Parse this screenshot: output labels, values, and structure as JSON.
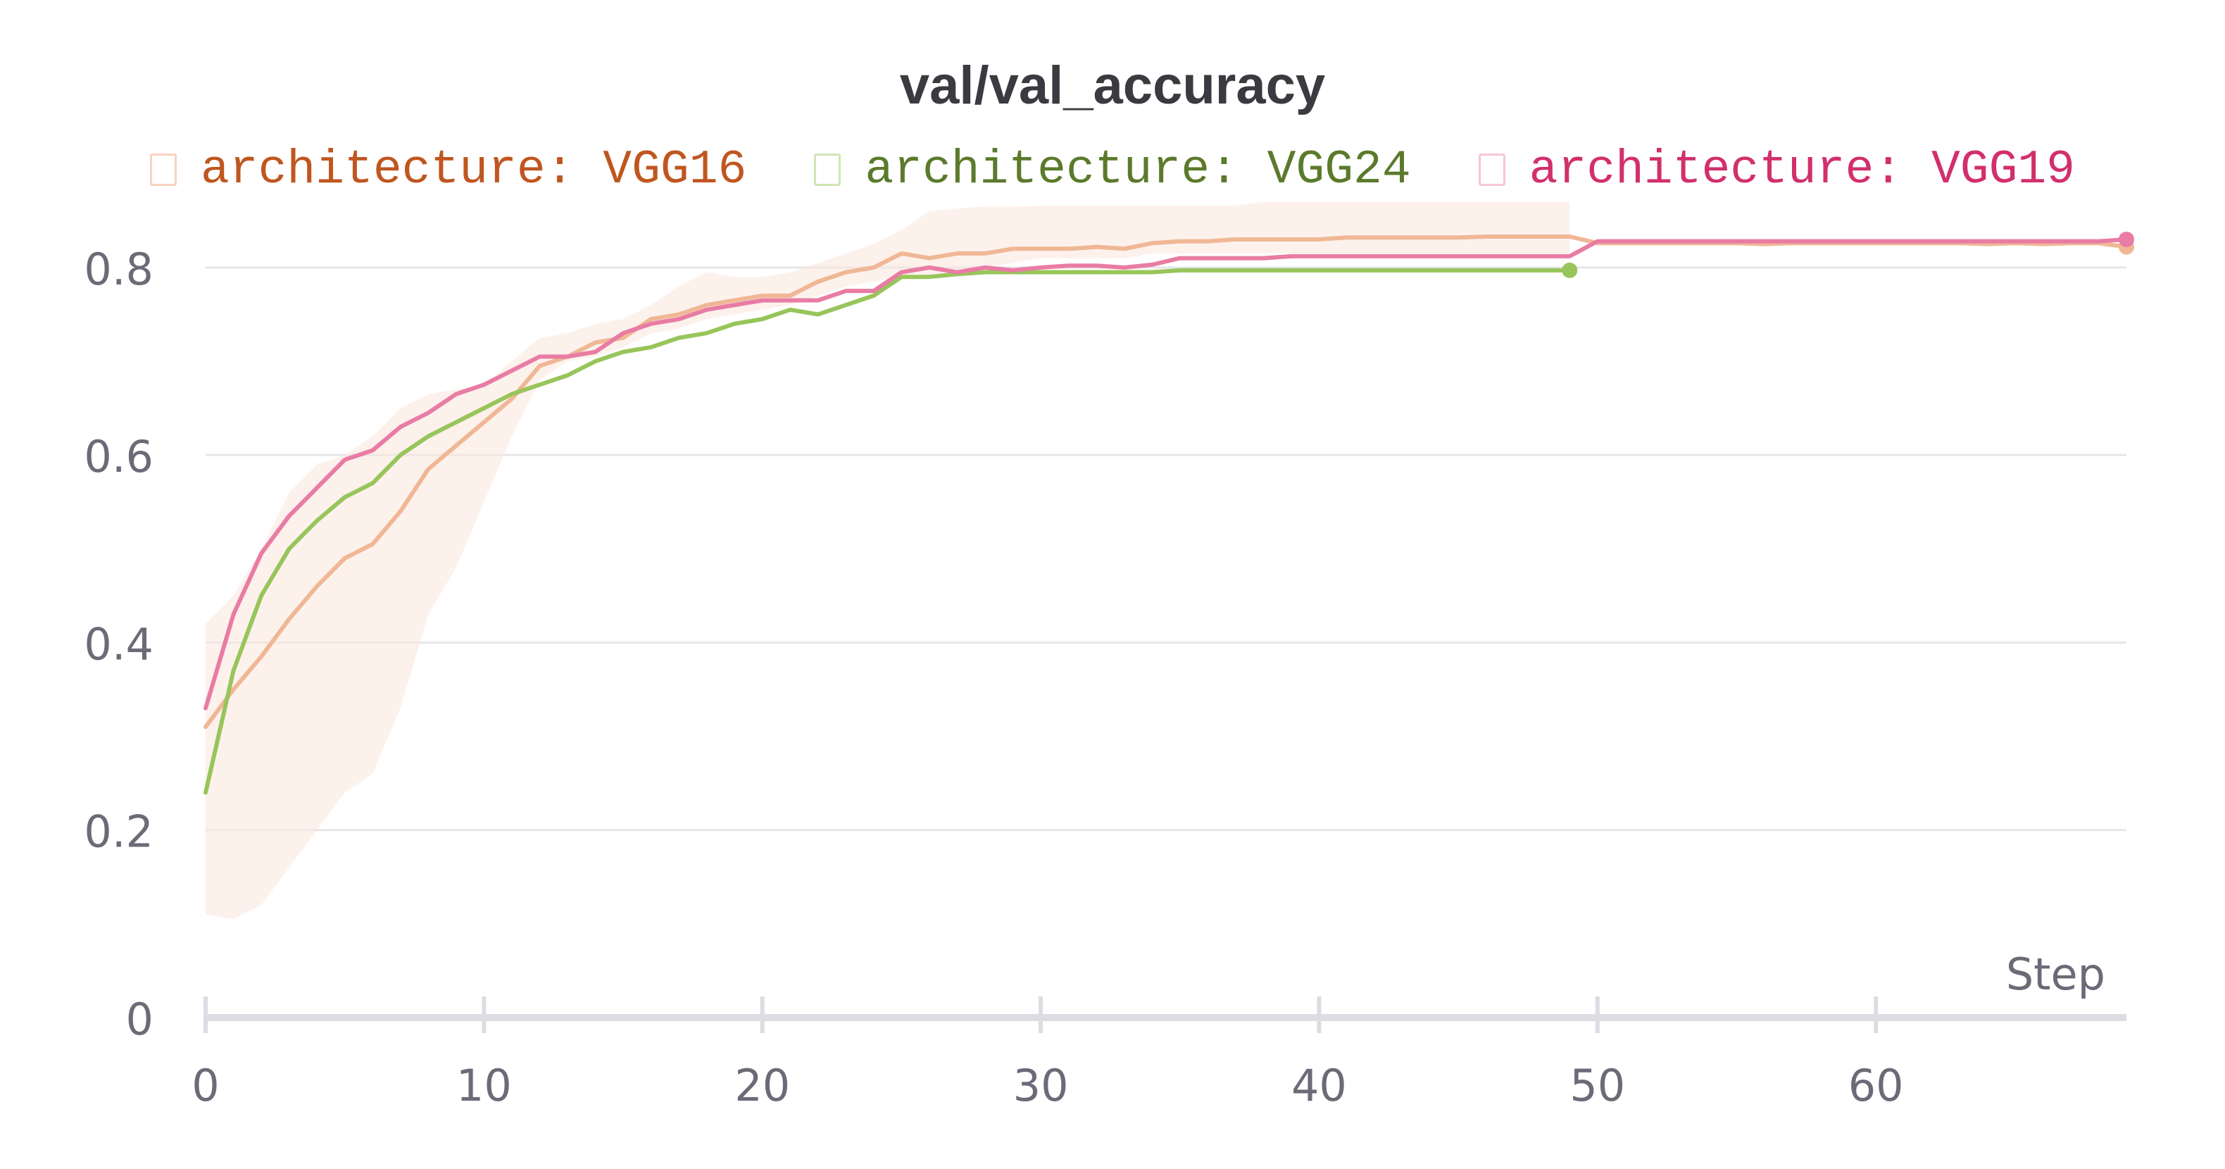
{
  "chart_data": {
    "type": "line",
    "title": "val/val_accuracy",
    "xlabel": "Step",
    "ylabel": "",
    "xlim": [
      0,
      69
    ],
    "ylim": [
      0,
      0.86
    ],
    "x_ticks": [
      0,
      10,
      20,
      30,
      40,
      50,
      60
    ],
    "y_ticks": [
      0,
      0.2,
      0.4,
      0.6,
      0.8
    ],
    "x_tick_labels": [
      "0",
      "10",
      "20",
      "30",
      "40",
      "50",
      "60"
    ],
    "y_tick_labels": [
      "0",
      "0.2",
      "0.4",
      "0.6",
      "0.8"
    ],
    "grid": true,
    "legend_position": "top",
    "series": [
      {
        "name": "architecture: VGG16",
        "line_color": "#f0b795",
        "text_color": "#c0561f",
        "band_color": "#fbe6dc",
        "values": [
          0.31,
          0.35,
          0.385,
          0.425,
          0.46,
          0.49,
          0.505,
          0.54,
          0.585,
          0.61,
          0.635,
          0.66,
          0.695,
          0.705,
          0.72,
          0.725,
          0.745,
          0.75,
          0.76,
          0.765,
          0.77,
          0.77,
          0.785,
          0.795,
          0.8,
          0.815,
          0.81,
          0.815,
          0.815,
          0.82,
          0.82,
          0.82,
          0.822,
          0.82,
          0.826,
          0.828,
          0.828,
          0.83,
          0.83,
          0.83,
          0.83,
          0.832,
          0.832,
          0.832,
          0.832,
          0.832,
          0.833,
          0.833,
          0.833,
          0.833,
          0.826,
          0.826,
          0.826,
          0.826,
          0.826,
          0.826,
          0.825,
          0.826,
          0.826,
          0.826,
          0.826,
          0.826,
          0.826,
          0.826,
          0.825,
          0.826,
          0.825,
          0.826,
          0.826,
          0.822
        ],
        "band_lower": [
          0.11,
          0.105,
          0.12,
          0.16,
          0.2,
          0.24,
          0.26,
          0.33,
          0.43,
          0.48,
          0.55,
          0.62,
          0.68,
          0.7,
          0.705,
          0.715,
          0.73,
          0.735,
          0.745,
          0.75,
          0.755,
          0.76,
          0.77,
          0.78,
          0.785,
          0.79,
          0.79,
          0.795,
          0.8,
          0.805,
          0.81,
          0.81,
          0.81,
          0.81,
          0.815,
          0.815,
          0.815,
          0.815,
          0.815,
          0.815,
          0.815,
          0.815,
          0.815,
          0.815,
          0.815,
          0.815,
          0.815,
          0.815,
          0.815,
          0.815
        ],
        "band_upper": [
          0.42,
          0.45,
          0.5,
          0.56,
          0.59,
          0.6,
          0.62,
          0.65,
          0.665,
          0.67,
          0.675,
          0.7,
          0.725,
          0.73,
          0.74,
          0.745,
          0.76,
          0.78,
          0.795,
          0.79,
          0.79,
          0.795,
          0.805,
          0.815,
          0.825,
          0.84,
          0.86,
          0.863,
          0.865,
          0.865,
          0.866,
          0.866,
          0.866,
          0.866,
          0.866,
          0.866,
          0.866,
          0.866,
          0.87,
          0.87,
          0.87,
          0.87,
          0.87,
          0.87,
          0.87,
          0.87,
          0.87,
          0.87,
          0.87,
          0.87
        ]
      },
      {
        "name": "architecture: VGG24",
        "line_color": "#98c55b",
        "text_color": "#5b7a2c",
        "values": [
          0.24,
          0.37,
          0.45,
          0.5,
          0.53,
          0.555,
          0.57,
          0.6,
          0.62,
          0.635,
          0.65,
          0.665,
          0.675,
          0.685,
          0.7,
          0.71,
          0.715,
          0.725,
          0.73,
          0.74,
          0.745,
          0.755,
          0.75,
          0.76,
          0.77,
          0.79,
          0.79,
          0.793,
          0.795,
          0.795,
          0.795,
          0.795,
          0.795,
          0.795,
          0.795,
          0.797,
          0.797,
          0.797,
          0.797,
          0.797,
          0.797,
          0.797,
          0.797,
          0.797,
          0.797,
          0.797,
          0.797,
          0.797,
          0.797,
          0.797
        ]
      },
      {
        "name": "architecture: VGG19",
        "line_color": "#e97ca4",
        "text_color": "#d22f6c",
        "values": [
          0.33,
          0.43,
          0.495,
          0.535,
          0.565,
          0.595,
          0.605,
          0.63,
          0.645,
          0.665,
          0.675,
          0.69,
          0.705,
          0.705,
          0.71,
          0.73,
          0.74,
          0.745,
          0.755,
          0.76,
          0.765,
          0.765,
          0.765,
          0.775,
          0.775,
          0.795,
          0.8,
          0.795,
          0.8,
          0.797,
          0.8,
          0.802,
          0.802,
          0.8,
          0.803,
          0.81,
          0.81,
          0.81,
          0.81,
          0.812,
          0.812,
          0.812,
          0.812,
          0.812,
          0.812,
          0.812,
          0.812,
          0.812,
          0.812,
          0.812,
          0.828,
          0.828,
          0.828,
          0.828,
          0.828,
          0.828,
          0.828,
          0.828,
          0.828,
          0.828,
          0.828,
          0.828,
          0.828,
          0.828,
          0.828,
          0.828,
          0.828,
          0.828,
          0.828,
          0.83
        ]
      }
    ]
  }
}
